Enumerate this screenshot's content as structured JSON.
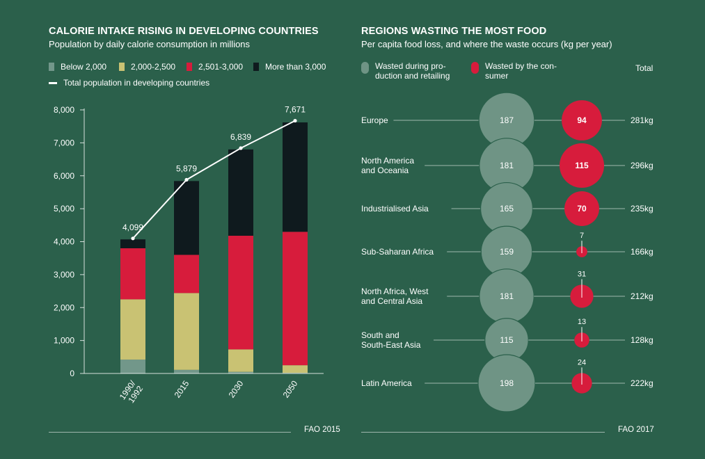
{
  "left": {
    "title": "CALORIE INTAKE RISING IN DEVELOPING COUNTRIES",
    "subtitle": "Population by daily calorie consumption in millions",
    "legend": {
      "below": "Below 2,000",
      "low": "2,000-2,500",
      "mid": "2,501-3,000",
      "high": "More than 3,000",
      "total": "Total population in developing countries"
    },
    "source": "FAO 2015"
  },
  "right": {
    "title": "REGIONS WASTING THE MOST FOOD",
    "subtitle": "Per capita food loss, and where the waste occurs (kg per year)",
    "legend": {
      "production": "Wasted during pro- duction and retailing",
      "consumer": "Wasted by the con- sumer",
      "total": "Total"
    },
    "source": "FAO 2017"
  },
  "colors": {
    "background": "#2b604b",
    "below": "#72978a",
    "low": "#c9c273",
    "mid": "#d71c3c",
    "high": "#0f1a1e",
    "production": "#6f9485",
    "consumer": "#d71c3c"
  },
  "chart_data": [
    {
      "type": "bar",
      "stacked": true,
      "categories": [
        "1990/ 1992",
        "2015",
        "2030",
        "2050"
      ],
      "series": [
        {
          "name": "Below 2,000",
          "values": [
            420,
            110,
            50,
            20
          ]
        },
        {
          "name": "2,000-2,500",
          "values": [
            1830,
            2330,
            680,
            230
          ]
        },
        {
          "name": "2,501-3,000",
          "values": [
            1550,
            1160,
            3450,
            4050
          ]
        },
        {
          "name": "More than 3,000",
          "values": [
            270,
            2240,
            2620,
            3320
          ]
        }
      ],
      "line": {
        "name": "Total population in developing countries",
        "values": [
          4099,
          5879,
          6839,
          7671
        ],
        "labels": [
          "4,099",
          "5,879",
          "6,839",
          "7,671"
        ]
      },
      "yticks": [
        "0",
        "1,000",
        "2,000",
        "3,000",
        "4,000",
        "5,000",
        "6,000",
        "7,000",
        "8,000"
      ],
      "ylim": [
        0,
        8000
      ]
    },
    {
      "type": "scatter",
      "regions": [
        {
          "label": "Europe",
          "production": 187,
          "consumer": 94,
          "total": "281kg"
        },
        {
          "label": "North America and Oceania",
          "production": 181,
          "consumer": 115,
          "total": "296kg"
        },
        {
          "label": "Industrialised Asia",
          "production": 165,
          "consumer": 70,
          "total": "235kg"
        },
        {
          "label": "Sub-Saharan Africa",
          "production": 159,
          "consumer": 7,
          "total": "166kg"
        },
        {
          "label": "North Africa, West and Central Asia",
          "production": 181,
          "consumer": 31,
          "total": "212kg"
        },
        {
          "label": "South and South-East Asia",
          "production": 115,
          "consumer": 13,
          "total": "128kg"
        },
        {
          "label": "Latin America",
          "production": 198,
          "consumer": 24,
          "total": "222kg"
        }
      ]
    }
  ]
}
